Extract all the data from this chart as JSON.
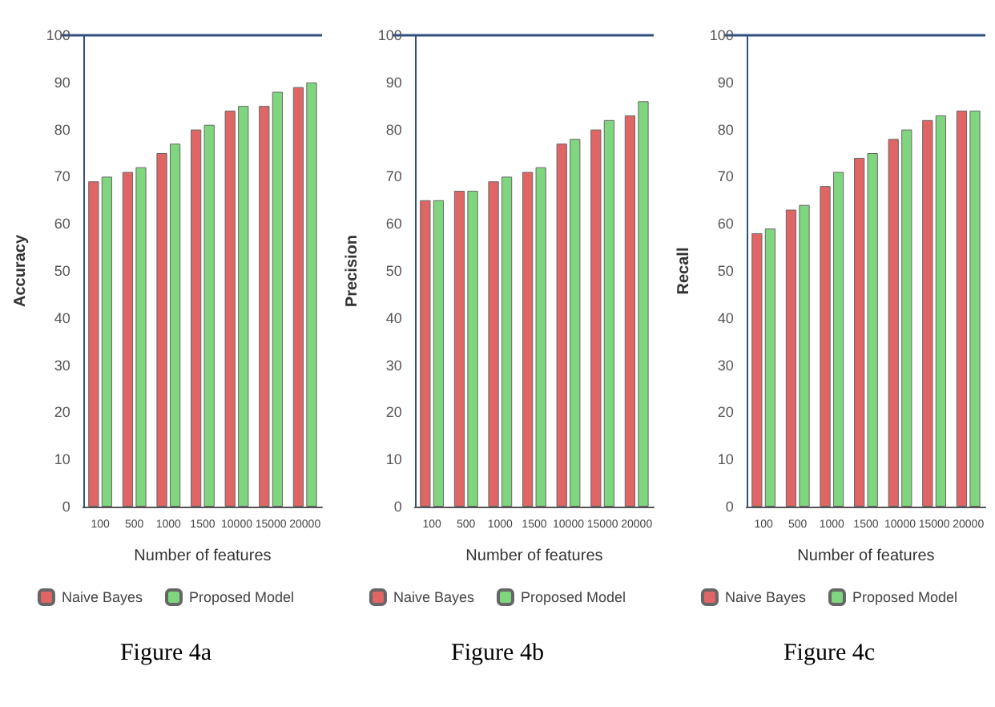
{
  "chart_data": [
    {
      "type": "bar",
      "xlabel": "Number of features",
      "ylabel": "Accuracy",
      "categories": [
        "100",
        "500",
        "1000",
        "1500",
        "10000",
        "15000",
        "20000"
      ],
      "series": [
        {
          "name": "Naive Bayes",
          "color": "#e06666",
          "values": [
            69,
            71,
            75,
            80,
            84,
            85,
            89
          ]
        },
        {
          "name": "Proposed Model",
          "color": "#7fd67f",
          "values": [
            70,
            72,
            77,
            81,
            85,
            88,
            90
          ]
        }
      ],
      "ylim": [
        0,
        100
      ],
      "yticks": [
        0,
        10,
        20,
        30,
        40,
        50,
        60,
        70,
        80,
        90,
        100
      ],
      "grid": false,
      "legend": "bottom",
      "annotations": [
        "Figure 4a"
      ]
    },
    {
      "type": "bar",
      "xlabel": "Number of features",
      "ylabel": "Precision",
      "categories": [
        "100",
        "500",
        "1000",
        "1500",
        "10000",
        "15000",
        "20000"
      ],
      "series": [
        {
          "name": "Naive Bayes",
          "color": "#e06666",
          "values": [
            65,
            67,
            69,
            71,
            77,
            80,
            83
          ]
        },
        {
          "name": "Proposed Model",
          "color": "#7fd67f",
          "values": [
            65,
            67,
            70,
            72,
            78,
            82,
            86
          ]
        }
      ],
      "ylim": [
        0,
        100
      ],
      "yticks": [
        0,
        10,
        20,
        30,
        40,
        50,
        60,
        70,
        80,
        90,
        100
      ],
      "grid": false,
      "legend": "bottom",
      "annotations": [
        "Figure 4b"
      ]
    },
    {
      "type": "bar",
      "xlabel": "Number of features",
      "ylabel": "Recall",
      "categories": [
        "100",
        "500",
        "1000",
        "1500",
        "10000",
        "15000",
        "20000"
      ],
      "series": [
        {
          "name": "Naive Bayes",
          "color": "#e06666",
          "values": [
            58,
            63,
            68,
            74,
            78,
            82,
            84
          ]
        },
        {
          "name": "Proposed Model",
          "color": "#7fd67f",
          "values": [
            59,
            64,
            71,
            75,
            80,
            83,
            84
          ]
        }
      ],
      "ylim": [
        0,
        100
      ],
      "yticks": [
        0,
        10,
        20,
        30,
        40,
        50,
        60,
        70,
        80,
        90,
        100
      ],
      "grid": false,
      "legend": "bottom",
      "annotations": [
        "Figure 4c"
      ]
    }
  ]
}
